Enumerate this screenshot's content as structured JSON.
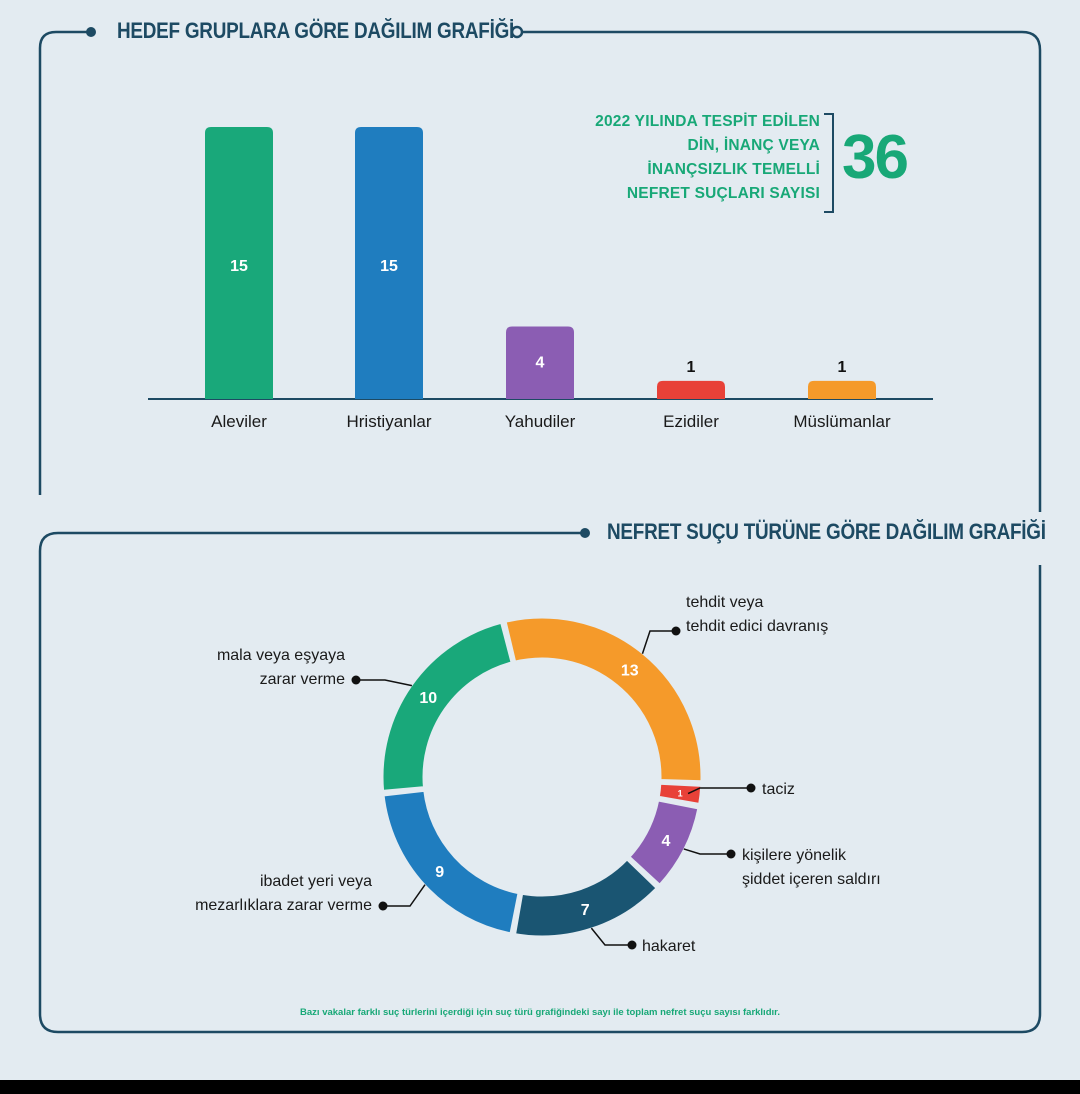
{
  "charts": {
    "groups": {
      "title": "HEDEF GRUPLARA GÖRE DAĞILIM GRAFİĞİ",
      "stat_lines": [
        "2022 YILINDA TESPİT EDİLEN",
        "DİN, İNANÇ VEYA",
        "İNANÇSIZLIK TEMELLİ",
        "NEFRET SUÇLARI SAYISI"
      ],
      "stat_value": "36"
    },
    "types": {
      "title": "NEFRET SUÇU TÜRÜNE GÖRE DAĞILIM GRAFİĞİ",
      "footnote": "Bazı vakalar farklı suç türlerini içerdiği için suç türü grafiğindeki sayı ile toplam nefret suçu sayısı farklıdır."
    }
  },
  "chart_data": [
    {
      "type": "bar",
      "title": "HEDEF GRUPLARA GÖRE DAĞILIM GRAFİĞİ",
      "categories": [
        "Aleviler",
        "Hristiyanlar",
        "Yahudiler",
        "Ezidiler",
        "Müslümanlar"
      ],
      "values": [
        15,
        15,
        4,
        1,
        1
      ],
      "colors": [
        "#19a87a",
        "#1f7dbf",
        "#8b5db3",
        "#e84138",
        "#f59a2a"
      ],
      "ylim": [
        0,
        16
      ],
      "grid": false,
      "legend": "none"
    },
    {
      "type": "pie",
      "donut": true,
      "title": "NEFRET SUÇU TÜRÜNE GÖRE DAĞILIM GRAFİĞİ",
      "slices": [
        {
          "label": "tehdit veya tehdit edici davranış",
          "label_lines": [
            "tehdit veya",
            "tehdit edici davranış"
          ],
          "value": 13,
          "color": "#f59a2a"
        },
        {
          "label": "taciz",
          "label_lines": [
            "taciz"
          ],
          "value": 1,
          "color": "#e84138"
        },
        {
          "label": "kişilere yönelik şiddet içeren saldırı",
          "label_lines": [
            "kişilere yönelik",
            "şiddet içeren saldırı"
          ],
          "value": 4,
          "color": "#8b5db3"
        },
        {
          "label": "hakaret",
          "label_lines": [
            "hakaret"
          ],
          "value": 7,
          "color": "#1a5572"
        },
        {
          "label": "ibadet yeri veya mezarlıklara zarar verme",
          "label_lines": [
            "ibadet yeri veya",
            "mezarlıklara zarar verme"
          ],
          "value": 9,
          "color": "#1f7dbf"
        },
        {
          "label": "mala veya eşyaya zarar verme",
          "label_lines": [
            "mala veya eşyaya",
            "zarar verme"
          ],
          "value": 10,
          "color": "#19a87a"
        }
      ]
    }
  ]
}
